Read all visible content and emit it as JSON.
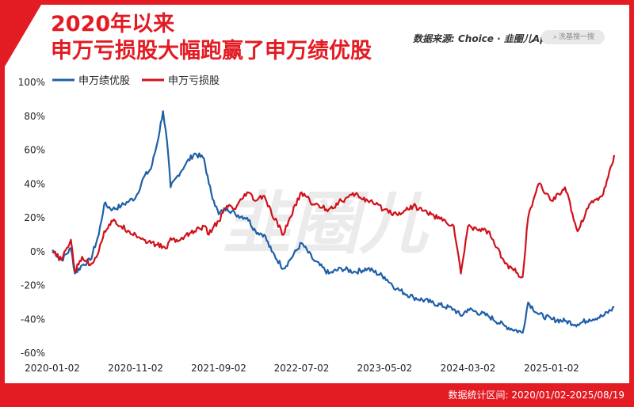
{
  "title": [
    "2020年以来",
    "申万亏损股大幅跑赢了申万绩优股"
  ],
  "source": "数据来源: Choice · 韭圈儿App",
  "search": {
    "icon": "search-icon",
    "placeholder": "洗基搜一搜"
  },
  "footer": "数据统计区间: 2020/01/02-2025/08/19",
  "watermark": "韭圈儿",
  "colors": {
    "brand": "#e31b23",
    "blue": "#1f5fa8",
    "red": "#d0111b"
  },
  "chart_data": {
    "type": "line",
    "x_labels": [
      "2020-01-02",
      "2020-11-02",
      "2021-09-02",
      "2022-07-02",
      "2023-05-02",
      "2024-03-02",
      "2025-01-02"
    ],
    "y_ticks": [
      "100%",
      "80%",
      "60%",
      "40%",
      "20%",
      "0%",
      "-20%",
      "-40%",
      "-60%"
    ],
    "ylim": [
      -60,
      100
    ],
    "x_range": [
      "2020-01-02",
      "2025-08-19"
    ],
    "legend": "top-left",
    "series": [
      {
        "name": "申万绩优股",
        "color": "#1f5fa8",
        "points": [
          [
            "2020-01-02",
            1
          ],
          [
            "2020-02-05",
            -5
          ],
          [
            "2020-03-10",
            2
          ],
          [
            "2020-03-25",
            -13
          ],
          [
            "2020-04-20",
            -8
          ],
          [
            "2020-05-20",
            -5
          ],
          [
            "2020-06-20",
            10
          ],
          [
            "2020-07-10",
            28
          ],
          [
            "2020-08-10",
            25
          ],
          [
            "2020-09-10",
            27
          ],
          [
            "2020-10-10",
            30
          ],
          [
            "2020-11-02",
            32
          ],
          [
            "2020-12-02",
            44
          ],
          [
            "2020-12-28",
            49
          ],
          [
            "2021-01-20",
            64
          ],
          [
            "2021-02-10",
            83
          ],
          [
            "2021-02-25",
            65
          ],
          [
            "2021-03-10",
            38
          ],
          [
            "2021-04-05",
            45
          ],
          [
            "2021-05-05",
            52
          ],
          [
            "2021-06-05",
            58
          ],
          [
            "2021-07-10",
            55
          ],
          [
            "2021-07-28",
            40
          ],
          [
            "2021-08-15",
            30
          ],
          [
            "2021-09-02",
            22
          ],
          [
            "2021-10-02",
            26
          ],
          [
            "2021-11-02",
            22
          ],
          [
            "2021-12-15",
            20
          ],
          [
            "2022-01-15",
            12
          ],
          [
            "2022-02-15",
            10
          ],
          [
            "2022-03-15",
            0
          ],
          [
            "2022-04-27",
            -10
          ],
          [
            "2022-05-20",
            -5
          ],
          [
            "2022-07-02",
            5
          ],
          [
            "2022-08-15",
            -5
          ],
          [
            "2022-10-10",
            -13
          ],
          [
            "2022-11-25",
            -10
          ],
          [
            "2023-01-15",
            -12
          ],
          [
            "2023-03-01",
            -10
          ],
          [
            "2023-05-02",
            -15
          ],
          [
            "2023-06-15",
            -22
          ],
          [
            "2023-08-15",
            -27
          ],
          [
            "2023-10-20",
            -30
          ],
          [
            "2024-01-10",
            -34
          ],
          [
            "2024-02-05",
            -38
          ],
          [
            "2024-03-02",
            -34
          ],
          [
            "2024-05-15",
            -38
          ],
          [
            "2024-07-15",
            -44
          ],
          [
            "2024-09-18",
            -48
          ],
          [
            "2024-10-08",
            -30
          ],
          [
            "2024-11-15",
            -37
          ],
          [
            "2025-01-02",
            -40
          ],
          [
            "2025-02-20",
            -41
          ],
          [
            "2025-04-07",
            -43
          ],
          [
            "2025-05-20",
            -40
          ],
          [
            "2025-07-10",
            -38
          ],
          [
            "2025-08-19",
            -33
          ]
        ]
      },
      {
        "name": "申万亏损股",
        "color": "#d0111b",
        "points": [
          [
            "2020-01-02",
            0
          ],
          [
            "2020-02-05",
            -5
          ],
          [
            "2020-03-10",
            7
          ],
          [
            "2020-03-25",
            -12
          ],
          [
            "2020-04-20",
            -3
          ],
          [
            "2020-05-20",
            -8
          ],
          [
            "2020-06-20",
            0
          ],
          [
            "2020-07-10",
            12
          ],
          [
            "2020-08-10",
            18
          ],
          [
            "2020-09-10",
            15
          ],
          [
            "2020-10-10",
            12
          ],
          [
            "2020-11-02",
            10
          ],
          [
            "2020-12-02",
            7
          ],
          [
            "2020-12-28",
            5
          ],
          [
            "2021-01-20",
            4
          ],
          [
            "2021-02-10",
            3
          ],
          [
            "2021-02-25",
            2
          ],
          [
            "2021-03-10",
            8
          ],
          [
            "2021-04-05",
            6
          ],
          [
            "2021-05-05",
            10
          ],
          [
            "2021-06-05",
            12
          ],
          [
            "2021-07-10",
            15
          ],
          [
            "2021-07-28",
            10
          ],
          [
            "2021-08-15",
            15
          ],
          [
            "2021-09-02",
            18
          ],
          [
            "2021-10-02",
            27
          ],
          [
            "2021-11-02",
            25
          ],
          [
            "2021-12-15",
            35
          ],
          [
            "2022-01-15",
            30
          ],
          [
            "2022-02-15",
            33
          ],
          [
            "2022-03-15",
            22
          ],
          [
            "2022-04-27",
            10
          ],
          [
            "2022-05-20",
            20
          ],
          [
            "2022-07-02",
            35
          ],
          [
            "2022-08-15",
            28
          ],
          [
            "2022-10-10",
            25
          ],
          [
            "2022-11-25",
            30
          ],
          [
            "2023-01-15",
            34
          ],
          [
            "2023-03-01",
            30
          ],
          [
            "2023-05-02",
            25
          ],
          [
            "2023-06-15",
            22
          ],
          [
            "2023-08-15",
            27
          ],
          [
            "2023-10-20",
            22
          ],
          [
            "2024-01-10",
            15
          ],
          [
            "2024-02-05",
            -13
          ],
          [
            "2024-03-02",
            15
          ],
          [
            "2024-05-15",
            12
          ],
          [
            "2024-07-15",
            -7
          ],
          [
            "2024-09-18",
            -15
          ],
          [
            "2024-10-08",
            20
          ],
          [
            "2024-11-15",
            40
          ],
          [
            "2025-01-02",
            30
          ],
          [
            "2025-02-20",
            38
          ],
          [
            "2025-04-07",
            12
          ],
          [
            "2025-05-20",
            28
          ],
          [
            "2025-07-10",
            34
          ],
          [
            "2025-08-19",
            57
          ]
        ]
      }
    ]
  }
}
